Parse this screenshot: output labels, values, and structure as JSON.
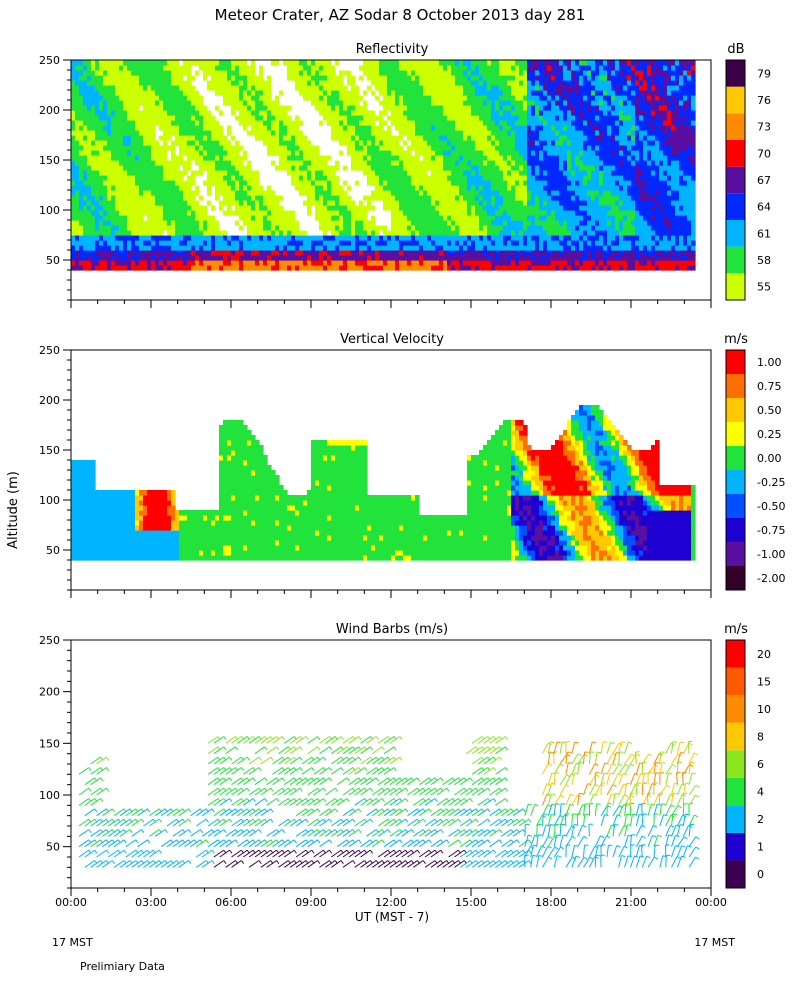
{
  "title": "Meteor Crater, AZ  Sodar   8 October 2013  day 281",
  "footer": {
    "left_local": "17 MST",
    "right_local": "17 MST",
    "note": "Prelimiary Data"
  },
  "chart_data": [
    {
      "type": "heatmap",
      "title": "Reflectivity",
      "ylabel": "",
      "ylim": [
        10,
        250
      ],
      "y_ticks": [
        "50",
        "100",
        "150",
        "200",
        "250"
      ],
      "colorbar": {
        "unit": "dB",
        "labels": [
          "55",
          "58",
          "61",
          "64",
          "67",
          "70",
          "73",
          "76",
          "79"
        ],
        "colors": [
          "#ccff00",
          "#22e23c",
          "#00b4ff",
          "#0028ff",
          "#5a0fa0",
          "#ff0000",
          "#ff8c00",
          "#ffc800",
          "#3c0046"
        ]
      },
      "data_range_x": [
        0,
        23.25
      ],
      "data_range_y": [
        40,
        250
      ]
    },
    {
      "type": "heatmap",
      "title": "Vertical Velocity",
      "ylabel": "Altitude (m)",
      "ylim": [
        10,
        250
      ],
      "y_ticks": [
        "50",
        "100",
        "150",
        "200",
        "250"
      ],
      "colorbar": {
        "unit": "m/s",
        "labels": [
          "-2.00",
          "-1.00",
          "-0.75",
          "-0.50",
          "-0.25",
          "0.00",
          "0.25",
          "0.50",
          "0.75",
          "1.00"
        ],
        "colors": [
          "#320028",
          "#5a0fa0",
          "#1e00d2",
          "#0050ff",
          "#00b4ff",
          "#22e23c",
          "#ffff00",
          "#ffc800",
          "#ff6e00",
          "#ff0000"
        ]
      },
      "data_range_x": [
        0,
        23.25
      ],
      "data_range_y": [
        40,
        250
      ]
    },
    {
      "type": "scatter",
      "title": "Wind Barbs (m/s)",
      "ylabel": "",
      "ylim": [
        10,
        250
      ],
      "y_ticks": [
        "50",
        "100",
        "150",
        "200",
        "250"
      ],
      "colorbar": {
        "unit": "m/s",
        "labels": [
          "0",
          "1",
          "2",
          "4",
          "6",
          "8",
          "10",
          "15",
          "20"
        ],
        "colors": [
          "#3c0050",
          "#1e00d2",
          "#00b4ff",
          "#22e23c",
          "#8ce61e",
          "#ffc800",
          "#ff8c00",
          "#ff5a00",
          "#ff0000"
        ]
      },
      "xlim": [
        0,
        24
      ],
      "x_ticks": [
        "00:00",
        "03:00",
        "06:00",
        "09:00",
        "12:00",
        "15:00",
        "18:00",
        "21:00",
        "00:00"
      ],
      "xlabel": "UT  (MST - 7)"
    }
  ]
}
